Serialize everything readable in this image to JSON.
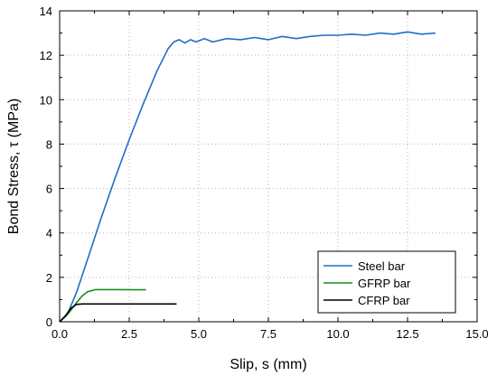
{
  "chart_data": {
    "type": "line",
    "title": "",
    "xlabel": "Slip, s (mm)",
    "ylabel": "Bond Stress, τ (MPa)",
    "xlim": [
      0.0,
      15.0
    ],
    "ylim": [
      0,
      14
    ],
    "x_ticks": [
      "0.0",
      "2.5",
      "5.0",
      "7.5",
      "10.0",
      "12.5",
      "15.0"
    ],
    "y_ticks": [
      "0",
      "2",
      "4",
      "6",
      "8",
      "10",
      "12",
      "14"
    ],
    "grid": "dotted",
    "legend_position": "bottom-right",
    "series": [
      {
        "name": "Steel bar",
        "color": "#1f6fc5",
        "points": [
          [
            0.0,
            0.0
          ],
          [
            0.3,
            0.4
          ],
          [
            0.6,
            1.3
          ],
          [
            1.0,
            2.8
          ],
          [
            1.5,
            4.7
          ],
          [
            2.0,
            6.5
          ],
          [
            2.5,
            8.2
          ],
          [
            3.0,
            9.8
          ],
          [
            3.5,
            11.3
          ],
          [
            3.9,
            12.3
          ],
          [
            4.1,
            12.6
          ],
          [
            4.3,
            12.7
          ],
          [
            4.5,
            12.55
          ],
          [
            4.7,
            12.7
          ],
          [
            4.9,
            12.6
          ],
          [
            5.2,
            12.75
          ],
          [
            5.5,
            12.6
          ],
          [
            6.0,
            12.75
          ],
          [
            6.5,
            12.7
          ],
          [
            7.0,
            12.8
          ],
          [
            7.5,
            12.7
          ],
          [
            8.0,
            12.85
          ],
          [
            8.5,
            12.75
          ],
          [
            9.0,
            12.85
          ],
          [
            9.5,
            12.9
          ],
          [
            10.0,
            12.9
          ],
          [
            10.5,
            12.95
          ],
          [
            11.0,
            12.9
          ],
          [
            11.5,
            13.0
          ],
          [
            12.0,
            12.95
          ],
          [
            12.5,
            13.05
          ],
          [
            13.0,
            12.95
          ],
          [
            13.5,
            13.0
          ]
        ]
      },
      {
        "name": "GFRP bar",
        "color": "#1a8c1a",
        "points": [
          [
            0.0,
            0.0
          ],
          [
            0.3,
            0.35
          ],
          [
            0.6,
            0.85
          ],
          [
            0.8,
            1.15
          ],
          [
            1.0,
            1.35
          ],
          [
            1.3,
            1.45
          ],
          [
            1.7,
            1.45
          ],
          [
            2.2,
            1.45
          ],
          [
            2.7,
            1.44
          ],
          [
            3.1,
            1.44
          ]
        ]
      },
      {
        "name": "CFRP bar",
        "color": "#000000",
        "points": [
          [
            0.0,
            0.0
          ],
          [
            0.2,
            0.25
          ],
          [
            0.4,
            0.6
          ],
          [
            0.6,
            0.78
          ],
          [
            0.8,
            0.8
          ],
          [
            1.5,
            0.8
          ],
          [
            2.5,
            0.8
          ],
          [
            3.5,
            0.8
          ],
          [
            4.2,
            0.8
          ]
        ]
      }
    ]
  }
}
